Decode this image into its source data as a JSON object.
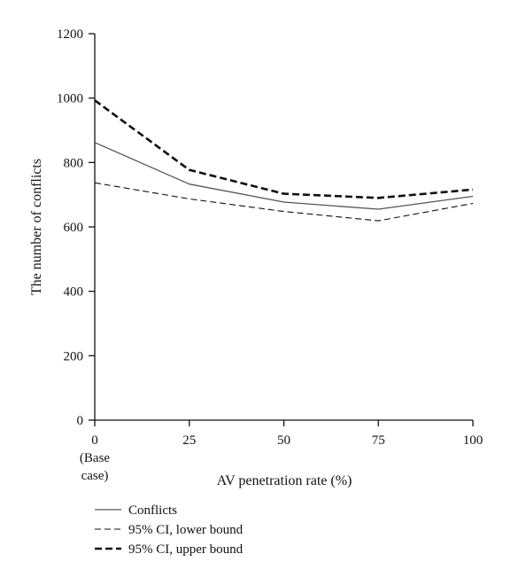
{
  "chart_data": {
    "type": "line",
    "x": [
      0,
      25,
      50,
      75,
      100
    ],
    "x_tick_labels": [
      "0",
      "25",
      "50",
      "75",
      "100"
    ],
    "x_tick_sublabel": [
      "(Base",
      "case)"
    ],
    "xlabel": "AV penetration rate (%)",
    "ylabel": "The number of conflicts",
    "xlim": [
      0,
      100
    ],
    "ylim": [
      0,
      1200
    ],
    "y_ticks": [
      0,
      200,
      400,
      600,
      800,
      1000,
      1200
    ],
    "grid": false,
    "legend_position": "bottom-left",
    "series": [
      {
        "name": "Conflicts",
        "values": [
          862,
          733,
          677,
          655,
          695
        ],
        "color": "#555555",
        "style": "solid"
      },
      {
        "name": "95% CI, lower bound",
        "values": [
          737,
          687,
          648,
          619,
          673
        ],
        "color": "#111111",
        "style": "dashed-thin"
      },
      {
        "name": "95% CI, upper bound",
        "values": [
          993,
          777,
          703,
          690,
          716
        ],
        "color": "#111111",
        "style": "dashed-thick"
      }
    ]
  }
}
